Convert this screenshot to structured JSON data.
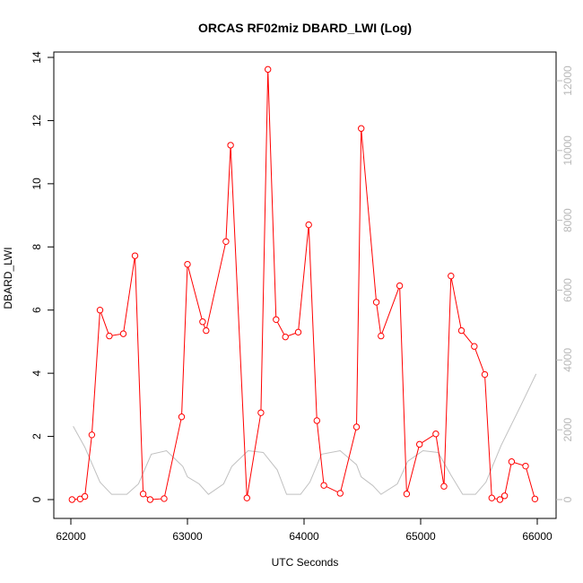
{
  "chart_data": {
    "type": "line",
    "title": "ORCAS RF02miz DBARD_LWI (Log)",
    "xlabel": "UTC Seconds",
    "ylabel": "DBARD_LWI",
    "xlim": [
      62000,
      66000
    ],
    "ylim": [
      0,
      14
    ],
    "y2lim": [
      0,
      12000
    ],
    "x_ticks": [
      62000,
      63000,
      64000,
      65000,
      66000
    ],
    "y_ticks": [
      0,
      2,
      4,
      6,
      8,
      10,
      12,
      14
    ],
    "y2_ticks": [
      0,
      2000,
      4000,
      6000,
      8000,
      10000,
      12000
    ],
    "grid": false,
    "colors": {
      "primary": "#ff0000",
      "secondary": "#c0c0c0"
    },
    "series": [
      {
        "axis": "left",
        "marker": "open-circle",
        "color": "#ff0000",
        "points": [
          [
            62010,
            0.0
          ],
          [
            62080,
            0.02
          ],
          [
            62120,
            0.1
          ],
          [
            62180,
            2.05
          ],
          [
            62250,
            6.0
          ],
          [
            62330,
            5.18
          ],
          [
            62450,
            5.25
          ],
          [
            62550,
            7.72
          ],
          [
            62620,
            0.18
          ],
          [
            62680,
            0.0
          ],
          [
            62800,
            0.03
          ],
          [
            62950,
            2.62
          ],
          [
            63000,
            7.45
          ],
          [
            63130,
            5.63
          ],
          [
            63160,
            5.35
          ],
          [
            63330,
            8.17
          ],
          [
            63370,
            11.22
          ],
          [
            63510,
            0.05
          ],
          [
            63630,
            2.75
          ],
          [
            63690,
            13.62
          ],
          [
            63760,
            5.7
          ],
          [
            63840,
            5.15
          ],
          [
            63950,
            5.3
          ],
          [
            64040,
            8.7
          ],
          [
            64110,
            2.5
          ],
          [
            64170,
            0.45
          ],
          [
            64310,
            0.2
          ],
          [
            64450,
            2.3
          ],
          [
            64490,
            11.75
          ],
          [
            64620,
            6.25
          ],
          [
            64660,
            5.18
          ],
          [
            64820,
            6.77
          ],
          [
            64880,
            0.18
          ],
          [
            64990,
            1.75
          ],
          [
            65130,
            2.08
          ],
          [
            65200,
            0.42
          ],
          [
            65260,
            7.08
          ],
          [
            65350,
            5.35
          ],
          [
            65460,
            4.85
          ],
          [
            65550,
            3.96
          ],
          [
            65610,
            0.05
          ],
          [
            65680,
            0.0
          ],
          [
            65720,
            0.12
          ],
          [
            65780,
            1.2
          ],
          [
            65900,
            1.06
          ],
          [
            65980,
            0.02
          ]
        ]
      },
      {
        "axis": "right",
        "marker": "none",
        "color": "#c0c0c0",
        "points": [
          [
            62020,
            2100
          ],
          [
            62120,
            1500
          ],
          [
            62250,
            500
          ],
          [
            62350,
            150
          ],
          [
            62480,
            150
          ],
          [
            62580,
            450
          ],
          [
            62690,
            1300
          ],
          [
            62820,
            1400
          ],
          [
            62960,
            950
          ],
          [
            63000,
            650
          ],
          [
            63100,
            450
          ],
          [
            63180,
            150
          ],
          [
            63310,
            450
          ],
          [
            63380,
            950
          ],
          [
            63520,
            1400
          ],
          [
            63650,
            1350
          ],
          [
            63770,
            850
          ],
          [
            63850,
            150
          ],
          [
            63970,
            150
          ],
          [
            64050,
            500
          ],
          [
            64150,
            1300
          ],
          [
            64310,
            1400
          ],
          [
            64450,
            1000
          ],
          [
            64490,
            650
          ],
          [
            64590,
            400
          ],
          [
            64660,
            150
          ],
          [
            64800,
            450
          ],
          [
            64890,
            1100
          ],
          [
            65020,
            1400
          ],
          [
            65150,
            1350
          ],
          [
            65260,
            700
          ],
          [
            65360,
            150
          ],
          [
            65470,
            150
          ],
          [
            65560,
            500
          ],
          [
            65690,
            1550
          ],
          [
            65860,
            2700
          ],
          [
            65990,
            3600
          ]
        ]
      }
    ]
  }
}
